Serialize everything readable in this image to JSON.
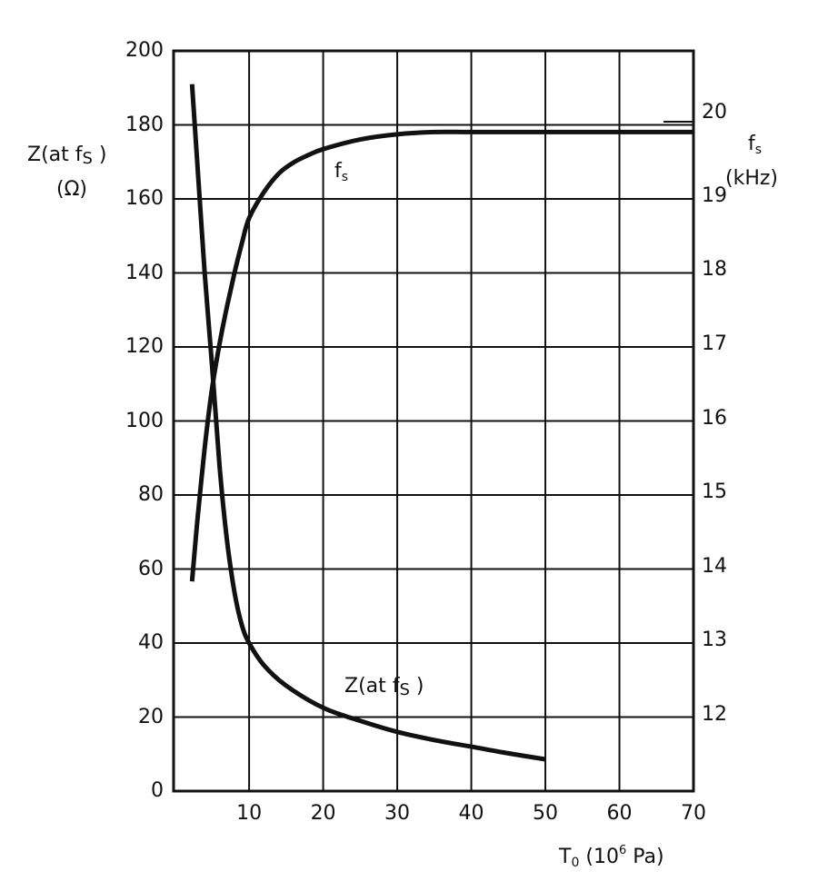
{
  "chart_data": {
    "type": "line",
    "title": "",
    "xlabel": "T0 (10^6 Pa)",
    "xlabel_parts": {
      "main": "T",
      "sub": "0",
      "pre": " (10",
      "sup": "6",
      "post": " Pa)"
    },
    "ylabel_left": "Z(at fs) (Ω)",
    "ylabel_left_parts": {
      "line1_main": "Z(at f",
      "line1_sub": "S",
      "line1_post": " )",
      "line2": "(Ω)"
    },
    "ylabel_right": "fs (kHz)",
    "ylabel_right_parts": {
      "main": "f",
      "sub": "s",
      "line2": "(kHz)"
    },
    "xlim": [
      0,
      70
    ],
    "ylim_left": [
      0,
      200
    ],
    "ylim_right": [
      11.15,
      21.15
    ],
    "x_ticks": [
      10,
      20,
      30,
      40,
      50,
      60,
      70
    ],
    "y_ticks_left": [
      0,
      20,
      40,
      60,
      80,
      100,
      120,
      140,
      160,
      180,
      200
    ],
    "y_ticks_right": [
      12,
      13,
      14,
      15,
      16,
      17,
      18,
      19,
      20
    ],
    "grid": true,
    "legend": "none (inline curve labels)",
    "series": [
      {
        "name": "Z(at fs)",
        "axis": "left",
        "unit": "Ω",
        "label": {
          "main": "Z(at f",
          "sub": "S",
          "post": " )"
        },
        "x": [
          2.3,
          3,
          4,
          5,
          6,
          7,
          8,
          9,
          10,
          12,
          15,
          20,
          25,
          30,
          35,
          40,
          45,
          50
        ],
        "y": [
          191,
          170,
          140,
          115,
          88,
          68,
          54,
          45,
          40,
          34,
          28.5,
          22.5,
          19,
          16,
          13.8,
          12,
          10.2,
          8.6
        ]
      },
      {
        "name": "fs",
        "axis": "right",
        "unit": "kHz",
        "label": {
          "main": "f",
          "sub": "s"
        },
        "x": [
          2.3,
          3,
          4,
          5,
          6,
          7,
          8,
          9,
          10,
          12,
          14,
          16,
          18,
          20,
          25,
          30,
          35,
          40,
          50,
          60,
          70
        ],
        "y": [
          13.8,
          14.6,
          15.6,
          16.4,
          17.0,
          17.5,
          17.95,
          18.35,
          18.7,
          19.05,
          19.3,
          19.45,
          19.55,
          19.63,
          19.76,
          19.83,
          19.86,
          19.86,
          19.86,
          19.86,
          19.86
        ]
      }
    ]
  }
}
